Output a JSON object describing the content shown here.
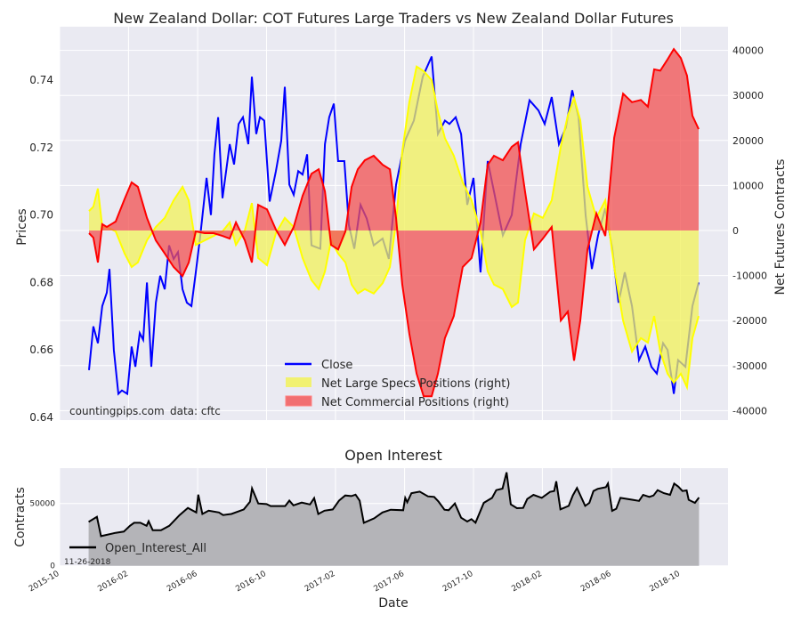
{
  "chart_data": [
    {
      "type": "line",
      "title": "New Zealand Dollar: COT Futures Large Traders vs New Zealand Dollar Futures",
      "ylabel": "Prices",
      "ylabel_right": "Net Futures Contracts",
      "ylim": [
        0.64,
        0.755
      ],
      "ylim_right": [
        -41000,
        43000
      ],
      "yticks": [
        "0.64",
        "0.66",
        "0.68",
        "0.70",
        "0.72",
        "0.74"
      ],
      "yticks_right": [
        "-40000",
        "-30000",
        "-20000",
        "-10000",
        "0",
        "10000",
        "20000",
        "30000",
        "40000"
      ],
      "grid": true,
      "legend_position": "lower-center",
      "legend": [
        "Close",
        "Net Large Specs Positions (right)",
        "Net Commercial Positions (right)"
      ],
      "annotations": [
        "countingpips.com",
        "data: cftc"
      ],
      "colors": {
        "close": "#0000FF",
        "specs_line": "#FFFF00",
        "specs_fill": "#F2F25A",
        "comm_line": "#FF0000",
        "comm_fill": "#F25050"
      },
      "x_unit": "decimal year",
      "close": [
        [
          2015.892,
          0.654
        ],
        [
          2015.913,
          0.667
        ],
        [
          2015.935,
          0.662
        ],
        [
          2015.956,
          0.673
        ],
        [
          2015.978,
          0.677
        ],
        [
          2015.991,
          0.684
        ],
        [
          2016.012,
          0.66
        ],
        [
          2016.034,
          0.647
        ],
        [
          2016.051,
          0.648
        ],
        [
          2016.077,
          0.647
        ],
        [
          2016.098,
          0.661
        ],
        [
          2016.116,
          0.655
        ],
        [
          2016.137,
          0.665
        ],
        [
          2016.154,
          0.663
        ],
        [
          2016.172,
          0.68
        ],
        [
          2016.193,
          0.655
        ],
        [
          2016.215,
          0.674
        ],
        [
          2016.236,
          0.682
        ],
        [
          2016.258,
          0.678
        ],
        [
          2016.279,
          0.691
        ],
        [
          2016.301,
          0.687
        ],
        [
          2016.322,
          0.689
        ],
        [
          2016.344,
          0.678
        ],
        [
          2016.365,
          0.674
        ],
        [
          2016.387,
          0.673
        ],
        [
          2016.408,
          0.683
        ],
        [
          2016.43,
          0.694
        ],
        [
          2016.46,
          0.711
        ],
        [
          2016.481,
          0.7
        ],
        [
          2016.498,
          0.718
        ],
        [
          2016.516,
          0.729
        ],
        [
          2016.537,
          0.705
        ],
        [
          2016.572,
          0.721
        ],
        [
          2016.593,
          0.715
        ],
        [
          2016.615,
          0.727
        ],
        [
          2016.636,
          0.729
        ],
        [
          2016.662,
          0.721
        ],
        [
          2016.679,
          0.741
        ],
        [
          2016.7,
          0.724
        ],
        [
          2016.718,
          0.729
        ],
        [
          2016.739,
          0.728
        ],
        [
          2016.765,
          0.704
        ],
        [
          2016.795,
          0.713
        ],
        [
          2016.821,
          0.722
        ],
        [
          2016.838,
          0.738
        ],
        [
          2016.86,
          0.709
        ],
        [
          2016.881,
          0.706
        ],
        [
          2016.903,
          0.713
        ],
        [
          2016.924,
          0.712
        ],
        [
          2016.946,
          0.718
        ],
        [
          2016.967,
          0.691
        ],
        [
          2017.01,
          0.69
        ],
        [
          2017.032,
          0.721
        ],
        [
          2017.053,
          0.729
        ],
        [
          2017.075,
          0.733
        ],
        [
          2017.096,
          0.716
        ],
        [
          2017.126,
          0.716
        ],
        [
          2017.148,
          0.697
        ],
        [
          2017.174,
          0.69
        ],
        [
          2017.204,
          0.703
        ],
        [
          2017.234,
          0.699
        ],
        [
          2017.268,
          0.691
        ],
        [
          2017.311,
          0.693
        ],
        [
          2017.341,
          0.687
        ],
        [
          2017.376,
          0.709
        ],
        [
          2017.419,
          0.722
        ],
        [
          2017.462,
          0.728
        ],
        [
          2017.505,
          0.741
        ],
        [
          2017.548,
          0.747
        ],
        [
          2017.578,
          0.724
        ],
        [
          2017.612,
          0.728
        ],
        [
          2017.634,
          0.727
        ],
        [
          2017.664,
          0.729
        ],
        [
          2017.69,
          0.724
        ],
        [
          2017.72,
          0.703
        ],
        [
          2017.75,
          0.711
        ],
        [
          2017.784,
          0.683
        ],
        [
          2017.819,
          0.716
        ],
        [
          2017.849,
          0.707
        ],
        [
          2017.892,
          0.694
        ],
        [
          2017.935,
          0.7
        ],
        [
          2017.978,
          0.721
        ],
        [
          2018.021,
          0.734
        ],
        [
          2018.064,
          0.731
        ],
        [
          2018.094,
          0.727
        ],
        [
          2018.128,
          0.735
        ],
        [
          2018.163,
          0.721
        ],
        [
          2018.197,
          0.726
        ],
        [
          2018.227,
          0.737
        ],
        [
          2018.258,
          0.729
        ],
        [
          2018.292,
          0.7
        ],
        [
          2018.322,
          0.684
        ],
        [
          2018.352,
          0.694
        ],
        [
          2018.387,
          0.702
        ],
        [
          2018.421,
          0.69
        ],
        [
          2018.451,
          0.674
        ],
        [
          2018.481,
          0.683
        ],
        [
          2018.516,
          0.673
        ],
        [
          2018.55,
          0.657
        ],
        [
          2018.58,
          0.661
        ],
        [
          2018.61,
          0.655
        ],
        [
          2018.636,
          0.653
        ],
        [
          2018.666,
          0.662
        ],
        [
          2018.688,
          0.66
        ],
        [
          2018.718,
          0.647
        ],
        [
          2018.739,
          0.657
        ],
        [
          2018.774,
          0.655
        ],
        [
          2018.808,
          0.673
        ],
        [
          2018.838,
          0.68
        ]
      ],
      "positions_x": [
        2015.892,
        2015.913,
        2015.935,
        2015.956,
        2015.978,
        2016.021,
        2016.064,
        2016.098,
        2016.128,
        2016.172,
        2016.215,
        2016.258,
        2016.301,
        2016.344,
        2016.374,
        2016.408,
        2016.451,
        2016.494,
        2016.537,
        2016.572,
        2016.602,
        2016.645,
        2016.679,
        2016.709,
        2016.752,
        2016.795,
        2016.838,
        2016.881,
        2016.924,
        2016.967,
        2017.002,
        2017.032,
        2017.062,
        2017.096,
        2017.131,
        2017.161,
        2017.191,
        2017.225,
        2017.268,
        2017.311,
        2017.346,
        2017.376,
        2017.406,
        2017.44,
        2017.475,
        2017.509,
        2017.548,
        2017.578,
        2017.612,
        2017.655,
        2017.698,
        2017.741,
        2017.784,
        2017.819,
        2017.849,
        2017.892,
        2017.935,
        2017.965,
        2017.999,
        2018.042,
        2018.085,
        2018.128,
        2018.172,
        2018.206,
        2018.236,
        2018.266,
        2018.301,
        2018.344,
        2018.387,
        2018.43,
        2018.473,
        2018.516,
        2018.559,
        2018.593,
        2018.623,
        2018.653,
        2018.688,
        2018.718,
        2018.752,
        2018.782,
        2018.808,
        2018.838
      ],
      "net_large_specs": [
        4300,
        5300,
        9300,
        800,
        800,
        -200,
        -5100,
        -8100,
        -7100,
        -2200,
        800,
        2800,
        6700,
        9700,
        6700,
        -3200,
        -2200,
        -1200,
        -200,
        1800,
        -3200,
        0,
        6100,
        -6100,
        -7700,
        -600,
        2800,
        800,
        -6100,
        -11000,
        -13000,
        -9100,
        -2200,
        -5100,
        -7100,
        -12000,
        -14000,
        -13000,
        -14000,
        -11700,
        -8100,
        1800,
        17600,
        28500,
        36400,
        35400,
        33400,
        26500,
        20500,
        16600,
        10700,
        6700,
        -200,
        -9100,
        -12000,
        -13000,
        -17000,
        -16000,
        -2200,
        3800,
        2800,
        6700,
        18600,
        25500,
        29400,
        24500,
        9700,
        2800,
        6700,
        -8100,
        -20000,
        -26900,
        -23900,
        -24900,
        -19000,
        -26900,
        -31800,
        -33800,
        -31800,
        -34800,
        -23900,
        -19000
      ],
      "net_commercial": [
        -600,
        -1600,
        -7100,
        1400,
        800,
        2000,
        7000,
        10700,
        9700,
        2800,
        -2200,
        -5100,
        -8100,
        -10100,
        -7100,
        -200,
        -600,
        -600,
        -1200,
        -1800,
        1800,
        -2200,
        -7100,
        5700,
        4700,
        200,
        -3200,
        800,
        7700,
        12600,
        13600,
        8700,
        -3200,
        -4200,
        -200,
        9700,
        13600,
        15600,
        16600,
        14600,
        13600,
        2800,
        -12000,
        -22900,
        -31800,
        -36800,
        -36800,
        -31800,
        -23900,
        -19000,
        -8100,
        -6100,
        1800,
        14600,
        16600,
        15600,
        18600,
        19600,
        8700,
        -4200,
        -1800,
        800,
        -20000,
        -18000,
        -28900,
        -20000,
        -4200,
        3800,
        -1200,
        20600,
        30400,
        28500,
        29000,
        27500,
        35800,
        35500,
        38000,
        40300,
        38300,
        34400,
        25500,
        22500
      ]
    },
    {
      "type": "area",
      "title": "Open Interest",
      "xlabel": "Date",
      "ylabel": "Contracts",
      "ylim": [
        0,
        78000
      ],
      "yticks": [
        "0",
        "50000"
      ],
      "xticks": [
        "2015-10",
        "2016-02",
        "2016-06",
        "2016-10",
        "2017-02",
        "2017-06",
        "2017-10",
        "2018-02",
        "2018-06",
        "2018-10"
      ],
      "legend": [
        "Open_Interest_All"
      ],
      "legend_position": "lower-left",
      "annotation": "11-26-2018",
      "colors": {
        "line": "#000000",
        "fill": "#B4B4B8"
      },
      "x_unit": "decimal year",
      "open_interest": [
        [
          2015.89,
          35200
        ],
        [
          2015.93,
          39300
        ],
        [
          2015.95,
          23800
        ],
        [
          2016.02,
          26400
        ],
        [
          2016.06,
          27400
        ],
        [
          2016.09,
          32100
        ],
        [
          2016.11,
          34500
        ],
        [
          2016.14,
          34500
        ],
        [
          2016.17,
          32100
        ],
        [
          2016.18,
          35700
        ],
        [
          2016.2,
          28600
        ],
        [
          2016.24,
          28600
        ],
        [
          2016.28,
          32100
        ],
        [
          2016.33,
          40700
        ],
        [
          2016.37,
          46400
        ],
        [
          2016.41,
          42800
        ],
        [
          2016.42,
          57100
        ],
        [
          2016.44,
          41600
        ],
        [
          2016.47,
          44200
        ],
        [
          2016.52,
          42800
        ],
        [
          2016.54,
          40700
        ],
        [
          2016.58,
          41600
        ],
        [
          2016.64,
          45200
        ],
        [
          2016.67,
          51400
        ],
        [
          2016.68,
          62100
        ],
        [
          2016.71,
          50000
        ],
        [
          2016.75,
          49500
        ],
        [
          2016.77,
          47900
        ],
        [
          2016.84,
          47900
        ],
        [
          2016.86,
          52300
        ],
        [
          2016.88,
          48500
        ],
        [
          2016.92,
          50700
        ],
        [
          2016.96,
          49200
        ],
        [
          2016.98,
          54300
        ],
        [
          2017.0,
          41600
        ],
        [
          2017.03,
          44200
        ],
        [
          2017.07,
          45200
        ],
        [
          2017.1,
          52300
        ],
        [
          2017.13,
          56400
        ],
        [
          2017.16,
          55900
        ],
        [
          2017.18,
          57100
        ],
        [
          2017.2,
          52300
        ],
        [
          2017.22,
          34500
        ],
        [
          2017.27,
          38100
        ],
        [
          2017.31,
          42800
        ],
        [
          2017.35,
          45000
        ],
        [
          2017.41,
          44600
        ],
        [
          2017.42,
          54500
        ],
        [
          2017.43,
          51000
        ],
        [
          2017.45,
          58300
        ],
        [
          2017.49,
          59500
        ],
        [
          2017.53,
          55700
        ],
        [
          2017.56,
          55300
        ],
        [
          2017.58,
          51700
        ],
        [
          2017.61,
          45000
        ],
        [
          2017.63,
          44600
        ],
        [
          2017.66,
          50000
        ],
        [
          2017.69,
          38600
        ],
        [
          2017.72,
          35500
        ],
        [
          2017.74,
          37400
        ],
        [
          2017.76,
          34600
        ],
        [
          2017.8,
          50500
        ],
        [
          2017.84,
          54500
        ],
        [
          2017.86,
          60700
        ],
        [
          2017.89,
          61900
        ],
        [
          2017.91,
          75000
        ],
        [
          2017.93,
          49300
        ],
        [
          2017.96,
          46200
        ],
        [
          2017.99,
          46400
        ],
        [
          2018.01,
          53600
        ],
        [
          2018.04,
          56900
        ],
        [
          2018.08,
          54500
        ],
        [
          2018.12,
          59300
        ],
        [
          2018.14,
          60000
        ],
        [
          2018.15,
          67800
        ],
        [
          2018.17,
          45300
        ],
        [
          2018.21,
          48100
        ],
        [
          2018.23,
          56400
        ],
        [
          2018.25,
          62400
        ],
        [
          2018.29,
          48100
        ],
        [
          2018.31,
          50500
        ],
        [
          2018.33,
          60000
        ],
        [
          2018.35,
          61700
        ],
        [
          2018.39,
          63100
        ],
        [
          2018.4,
          66000
        ],
        [
          2018.42,
          44100
        ],
        [
          2018.44,
          45700
        ],
        [
          2018.46,
          54500
        ],
        [
          2018.52,
          52900
        ],
        [
          2018.55,
          52100
        ],
        [
          2018.57,
          56900
        ],
        [
          2018.6,
          55300
        ],
        [
          2018.62,
          56400
        ],
        [
          2018.64,
          60700
        ],
        [
          2018.67,
          58300
        ],
        [
          2018.7,
          56900
        ],
        [
          2018.72,
          66000
        ],
        [
          2018.74,
          63500
        ],
        [
          2018.76,
          60000
        ],
        [
          2018.78,
          60500
        ],
        [
          2018.79,
          52900
        ],
        [
          2018.82,
          50500
        ],
        [
          2018.84,
          54800
        ]
      ]
    }
  ]
}
